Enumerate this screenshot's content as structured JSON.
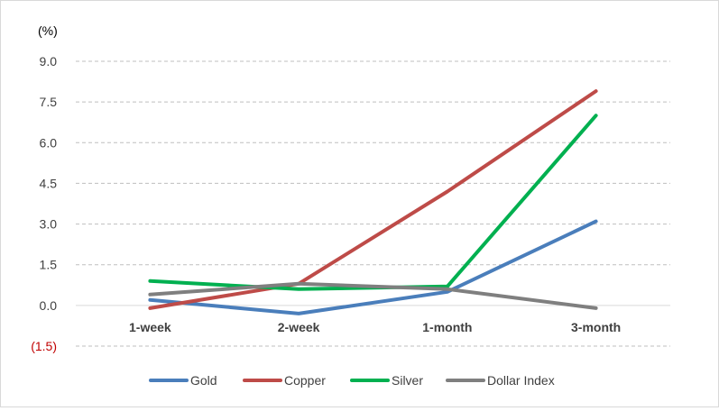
{
  "chart_data": {
    "type": "line",
    "title": "",
    "unit_label": "(%)",
    "xlabel": "",
    "ylabel": "",
    "categories": [
      "1-week",
      "2-week",
      "1-month",
      "3-month"
    ],
    "ylim": [
      -1.5,
      9.0
    ],
    "yticks": [
      -1.5,
      0.0,
      1.5,
      3.0,
      4.5,
      6.0,
      7.5,
      9.0
    ],
    "ytick_labels": [
      "(1.5)",
      "0.0",
      "1.5",
      "3.0",
      "4.5",
      "6.0",
      "7.5",
      "9.0"
    ],
    "grid": true,
    "legend_position": "bottom",
    "series": [
      {
        "name": "Gold",
        "color": "#4a7ebb",
        "values": [
          0.2,
          -0.3,
          0.5,
          3.1
        ]
      },
      {
        "name": "Copper",
        "color": "#be4b48",
        "values": [
          -0.1,
          0.8,
          4.2,
          7.9
        ]
      },
      {
        "name": "Silver",
        "color": "#00b050",
        "values": [
          0.9,
          0.6,
          0.7,
          7.0
        ]
      },
      {
        "name": "Dollar Index",
        "color": "#7f7f7f",
        "values": [
          0.4,
          0.8,
          0.6,
          -0.1
        ]
      }
    ]
  }
}
